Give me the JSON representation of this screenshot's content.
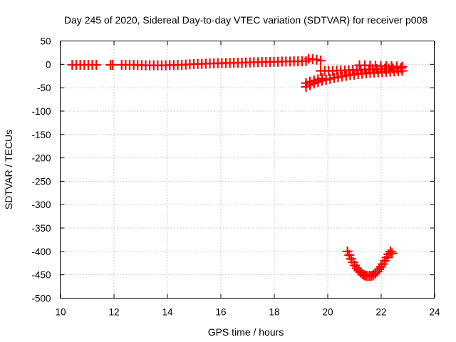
{
  "chart_data": {
    "type": "scatter",
    "title": "Day 245 of 2020, Sidereal Day-to-day VTEC variation (SDTVAR) for receiver p008",
    "xlabel": "GPS time / hours",
    "ylabel": "SDTVAR / TECUs",
    "xlim": [
      10,
      24
    ],
    "ylim": [
      -500,
      50
    ],
    "xticks": [
      10,
      12,
      14,
      16,
      18,
      20,
      22,
      24
    ],
    "yticks": [
      50,
      0,
      -50,
      -100,
      -150,
      -200,
      -250,
      -300,
      -350,
      -400,
      -450,
      -500
    ],
    "grid": true,
    "legend": "none",
    "series": [
      {
        "name": "SDTVAR",
        "color": "#ff0000",
        "marker": "plus",
        "points": [
          [
            10.45,
            -1
          ],
          [
            10.6,
            -1
          ],
          [
            10.75,
            -1
          ],
          [
            10.9,
            -1
          ],
          [
            11.05,
            -1
          ],
          [
            11.2,
            -1
          ],
          [
            11.35,
            -1
          ],
          [
            11.88,
            -1
          ],
          [
            11.96,
            -1
          ],
          [
            12.3,
            -1
          ],
          [
            12.45,
            -1
          ],
          [
            12.6,
            -1
          ],
          [
            12.75,
            -1
          ],
          [
            12.9,
            -1.5
          ],
          [
            13.05,
            -1.5
          ],
          [
            13.2,
            -2
          ],
          [
            13.35,
            -2
          ],
          [
            13.5,
            -2
          ],
          [
            13.65,
            -2
          ],
          [
            13.8,
            -2
          ],
          [
            13.95,
            -2
          ],
          [
            14.1,
            -1.5
          ],
          [
            14.25,
            -1.5
          ],
          [
            14.4,
            -1
          ],
          [
            14.55,
            -1
          ],
          [
            14.7,
            -0.5
          ],
          [
            14.85,
            0
          ],
          [
            15.0,
            0.5
          ],
          [
            15.15,
            1
          ],
          [
            15.3,
            1
          ],
          [
            15.45,
            1.5
          ],
          [
            15.6,
            2
          ],
          [
            15.75,
            2
          ],
          [
            15.9,
            2.5
          ],
          [
            16.05,
            2.5
          ],
          [
            16.2,
            3
          ],
          [
            16.35,
            3
          ],
          [
            16.5,
            3.5
          ],
          [
            16.65,
            3.5
          ],
          [
            16.8,
            3.5
          ],
          [
            16.95,
            4
          ],
          [
            17.1,
            4
          ],
          [
            17.25,
            4.5
          ],
          [
            17.4,
            4.5
          ],
          [
            17.55,
            5
          ],
          [
            17.7,
            5
          ],
          [
            17.85,
            5
          ],
          [
            18.0,
            5.5
          ],
          [
            18.15,
            5.5
          ],
          [
            18.3,
            6
          ],
          [
            18.45,
            6
          ],
          [
            18.6,
            6
          ],
          [
            18.75,
            6.5
          ],
          [
            18.9,
            6.5
          ],
          [
            19.05,
            6.5
          ],
          [
            19.2,
            7
          ],
          [
            19.3,
            12
          ],
          [
            19.45,
            11
          ],
          [
            19.6,
            10
          ],
          [
            19.75,
            8
          ],
          [
            19.75,
            -14
          ],
          [
            19.9,
            -14
          ],
          [
            20.05,
            -14
          ],
          [
            20.2,
            -14
          ],
          [
            20.35,
            -13.5
          ],
          [
            20.5,
            -13
          ],
          [
            20.65,
            -13
          ],
          [
            20.8,
            -12.5
          ],
          [
            20.95,
            -12
          ],
          [
            21.1,
            -12
          ],
          [
            21.25,
            -11.5
          ],
          [
            21.4,
            -11
          ],
          [
            21.55,
            -11
          ],
          [
            21.7,
            -10.5
          ],
          [
            21.85,
            -10
          ],
          [
            22.0,
            -10
          ],
          [
            22.15,
            -9.5
          ],
          [
            22.3,
            -9
          ],
          [
            22.45,
            -9
          ],
          [
            22.6,
            -8.5
          ],
          [
            22.75,
            -8
          ],
          [
            19.2,
            -48
          ],
          [
            19.35,
            -44
          ],
          [
            19.5,
            -41
          ],
          [
            19.65,
            -38
          ],
          [
            19.8,
            -35
          ],
          [
            19.95,
            -33
          ],
          [
            20.1,
            -31
          ],
          [
            20.25,
            -29
          ],
          [
            20.4,
            -27.5
          ],
          [
            20.55,
            -26
          ],
          [
            20.7,
            -24.5
          ],
          [
            20.85,
            -23
          ],
          [
            21.0,
            -22
          ],
          [
            21.15,
            -21
          ],
          [
            21.3,
            -20
          ],
          [
            21.45,
            -19
          ],
          [
            21.6,
            -18
          ],
          [
            21.75,
            -17.5
          ],
          [
            21.9,
            -17
          ],
          [
            22.05,
            -16.5
          ],
          [
            22.2,
            -16
          ],
          [
            22.35,
            -15.5
          ],
          [
            22.5,
            -15
          ],
          [
            22.65,
            -14.5
          ],
          [
            22.8,
            -14
          ],
          [
            21.2,
            -2
          ],
          [
            21.4,
            -2
          ],
          [
            21.6,
            -2.5
          ],
          [
            21.8,
            -3
          ],
          [
            22.0,
            -3.5
          ],
          [
            22.2,
            -4
          ],
          [
            22.4,
            -4
          ],
          [
            22.6,
            -4.5
          ],
          [
            22.8,
            -5
          ],
          [
            19.2,
            -40
          ],
          [
            19.35,
            -37
          ],
          [
            19.5,
            -34.5
          ],
          [
            19.65,
            -32
          ],
          [
            19.8,
            -30
          ],
          [
            20.75,
            -400
          ],
          [
            20.82,
            -408
          ],
          [
            20.89,
            -416
          ],
          [
            20.96,
            -423
          ],
          [
            21.03,
            -430
          ],
          [
            21.1,
            -436
          ],
          [
            21.17,
            -441
          ],
          [
            21.24,
            -445
          ],
          [
            21.31,
            -449
          ],
          [
            21.38,
            -451
          ],
          [
            21.45,
            -452
          ],
          [
            21.52,
            -453
          ],
          [
            21.59,
            -452.5
          ],
          [
            21.66,
            -452
          ],
          [
            21.73,
            -450
          ],
          [
            21.8,
            -447
          ],
          [
            21.87,
            -443
          ],
          [
            21.94,
            -438
          ],
          [
            22.01,
            -433
          ],
          [
            22.08,
            -427
          ],
          [
            22.15,
            -420
          ],
          [
            22.22,
            -413
          ],
          [
            22.29,
            -406
          ],
          [
            22.36,
            -400
          ],
          [
            22.42,
            -404
          ]
        ]
      }
    ]
  }
}
